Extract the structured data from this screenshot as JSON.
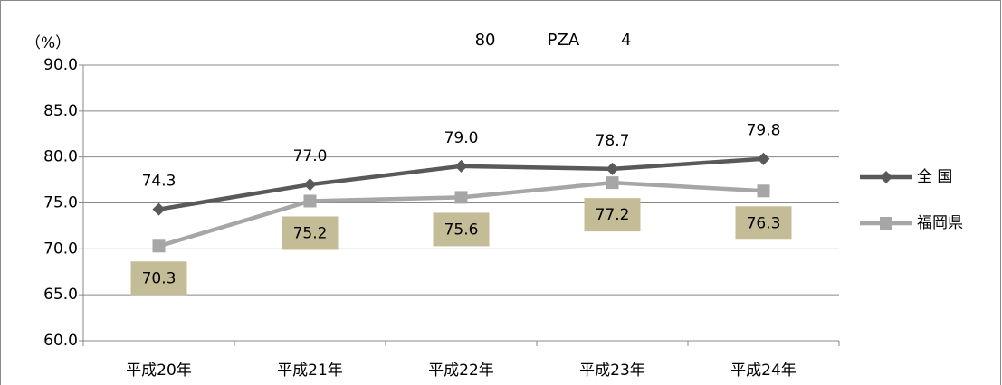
{
  "chart_data": {
    "type": "line",
    "title": "80          PZA        4",
    "y_label": "（%）",
    "categories": [
      "平成20年",
      "平成21年",
      "平成22年",
      "平成23年",
      "平成24年"
    ],
    "series": [
      {
        "name": "全 国",
        "color": "#595959",
        "marker": "diamond",
        "values": [
          74.3,
          77.0,
          79.0,
          78.7,
          79.8
        ],
        "value_labels": [
          "74.3",
          "77.0",
          "79.0",
          "78.7",
          "79.8"
        ]
      },
      {
        "name": "福岡県",
        "color": "#a6a6a6",
        "marker": "square",
        "label_box_color": "#c4bc96",
        "values": [
          70.3,
          75.2,
          75.6,
          77.2,
          76.3
        ],
        "value_labels": [
          "70.3",
          "75.2",
          "75.6",
          "77.2",
          "76.3"
        ]
      }
    ],
    "ylim": [
      60,
      90
    ],
    "yticks": [
      {
        "value": 60,
        "label": "60.0"
      },
      {
        "value": 65,
        "label": "65.0"
      },
      {
        "value": 70,
        "label": "70.0"
      },
      {
        "value": 75,
        "label": "75.0"
      },
      {
        "value": 80,
        "label": "80.0"
      },
      {
        "value": 85,
        "label": "85.0"
      },
      {
        "value": 90,
        "label": "90.0"
      }
    ],
    "grid": true,
    "legend": "right"
  }
}
